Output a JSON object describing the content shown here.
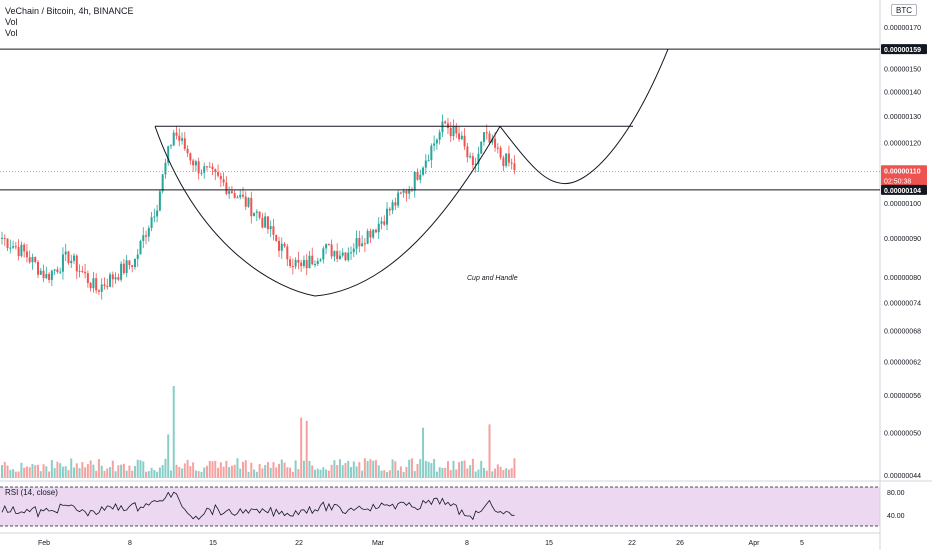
{
  "header": {
    "title": "VeChain / Bitcoin, 4h, BINANCE",
    "vol1": "Vol",
    "vol2": "Vol",
    "currency": "BTC"
  },
  "rsi": {
    "label": "RSI (14, close)",
    "levels": [
      "80.00",
      "40.00"
    ]
  },
  "colors": {
    "up": "#26a69a",
    "down": "#ef5350",
    "line": "#131722",
    "rsi_bg": "#e1bee7"
  },
  "chart_data": {
    "type": "candlestick",
    "x_labels": [
      "Feb",
      "8",
      "15",
      "22",
      "Mar",
      "8",
      "15",
      "22",
      "26",
      "Apr",
      "5"
    ],
    "y_tick_labels": [
      "0.00000170",
      "0.00000150",
      "0.00000140",
      "0.00000130",
      "0.00000120",
      "0.00000100",
      "0.00000090",
      "0.00000080",
      "0.00000074",
      "0.00000068",
      "0.00000062",
      "0.00000056",
      "0.00000050",
      "0.00000044"
    ],
    "y_ticks": [
      1.7,
      1.5,
      1.4,
      1.3,
      1.2,
      1.0,
      0.9,
      0.8,
      0.74,
      0.68,
      0.62,
      0.56,
      0.5,
      0.44
    ],
    "y_unit_scale": "values x 1e-6 BTC",
    "scale": "log",
    "last_price": "0.00000110",
    "countdown": "02:50:38",
    "horizontal_lines": [
      {
        "label": "0.00000159",
        "value": 1.59
      },
      {
        "label": "0.00000104",
        "value": 1.04
      }
    ],
    "neckline": 1.26,
    "annotation": "Cup and Handle",
    "anchors": [
      [
        0,
        0.9
      ],
      [
        8,
        0.86
      ],
      [
        16,
        0.8
      ],
      [
        24,
        0.85
      ],
      [
        34,
        0.77
      ],
      [
        40,
        0.8
      ],
      [
        48,
        0.84
      ],
      [
        56,
        1.0
      ],
      [
        62,
        1.24
      ],
      [
        70,
        1.12
      ],
      [
        80,
        1.06
      ],
      [
        92,
        0.97
      ],
      [
        102,
        0.86
      ],
      [
        108,
        0.82
      ],
      [
        116,
        0.87
      ],
      [
        124,
        0.86
      ],
      [
        136,
        0.94
      ],
      [
        148,
        1.06
      ],
      [
        156,
        1.2
      ],
      [
        160,
        1.27
      ],
      [
        166,
        1.2
      ],
      [
        170,
        1.1
      ],
      [
        174,
        1.22
      ],
      [
        180,
        1.15
      ],
      [
        185,
        1.11
      ]
    ],
    "volume_spike_candles": [
      60,
      62,
      108,
      110,
      152,
      176
    ]
  }
}
